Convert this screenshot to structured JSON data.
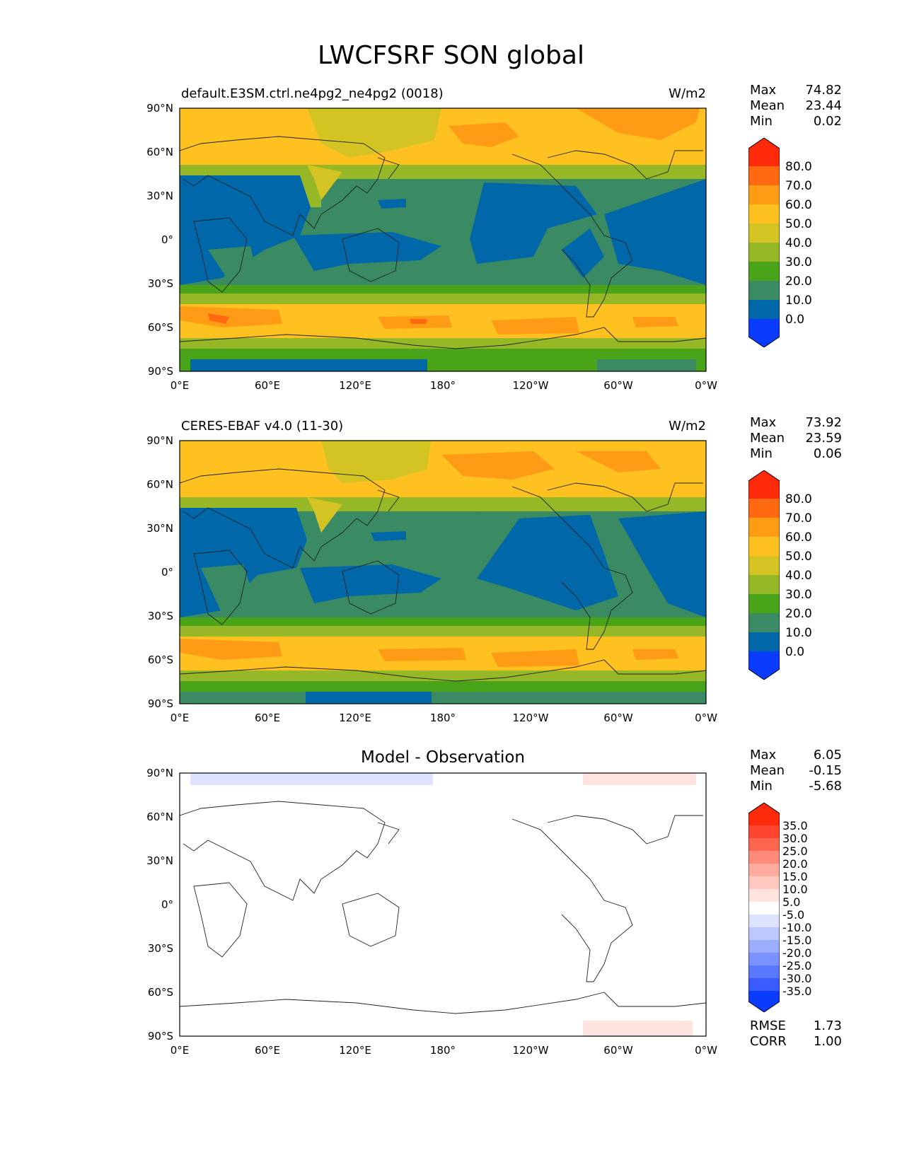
{
  "figure": {
    "title": "LWCFSRF SON global"
  },
  "axes": {
    "lat_labels": [
      "90°N",
      "60°N",
      "30°N",
      "0°",
      "30°S",
      "60°S",
      "90°S"
    ],
    "lon_labels": [
      "0°E",
      "60°E",
      "120°E",
      "180°",
      "120°W",
      "60°W",
      "0°W"
    ]
  },
  "panels": [
    {
      "id": "test",
      "title": "default.E3SM.ctrl.ne4pg2_ne4pg2 (0018)",
      "units": "W/m2",
      "stats": [
        {
          "label": "Max",
          "value": "74.82"
        },
        {
          "label": "Mean",
          "value": "23.44"
        },
        {
          "label": "Min",
          "value": "0.02"
        }
      ],
      "colorbar": {
        "labels": [
          "80.0",
          "70.0",
          "60.0",
          "50.0",
          "40.0",
          "30.0",
          "20.0",
          "10.0",
          "0.0"
        ],
        "colors": [
          "#ff2a0a",
          "#ff6a10",
          "#ff9b14",
          "#ffc11f",
          "#d4c423",
          "#96b826",
          "#4aa41a",
          "#3a8a63",
          "#0067a8",
          "#0a3cff"
        ]
      }
    },
    {
      "id": "reference",
      "title": "CERES-EBAF v4.0 (11-30)",
      "units": "W/m2",
      "stats": [
        {
          "label": "Max",
          "value": "73.92"
        },
        {
          "label": "Mean",
          "value": "23.59"
        },
        {
          "label": "Min",
          "value": "0.06"
        }
      ],
      "colorbar": {
        "labels": [
          "80.0",
          "70.0",
          "60.0",
          "50.0",
          "40.0",
          "30.0",
          "20.0",
          "10.0",
          "0.0"
        ],
        "colors": [
          "#ff2a0a",
          "#ff6a10",
          "#ff9b14",
          "#ffc11f",
          "#d4c423",
          "#96b826",
          "#4aa41a",
          "#3a8a63",
          "#0067a8",
          "#0a3cff"
        ]
      }
    },
    {
      "id": "diff",
      "title": "Model - Observation",
      "units": "",
      "stats": [
        {
          "label": "Max",
          "value": "6.05"
        },
        {
          "label": "Mean",
          "value": "-0.15"
        },
        {
          "label": "Min",
          "value": "-5.68"
        }
      ],
      "metrics": [
        {
          "label": "RMSE",
          "value": "1.73"
        },
        {
          "label": "CORR",
          "value": "1.00"
        }
      ],
      "colorbar": {
        "labels": [
          "35.0",
          "30.0",
          "25.0",
          "20.0",
          "15.0",
          "10.0",
          "5.0",
          "-5.0",
          "-10.0",
          "-15.0",
          "-20.0",
          "-25.0",
          "-30.0",
          "-35.0"
        ],
        "colors": [
          "#ff2a0a",
          "#ff4530",
          "#ff6650",
          "#ff8a78",
          "#ffab9e",
          "#ffc8bf",
          "#ffe3de",
          "#ffffff",
          "#dde3ff",
          "#bcc8ff",
          "#9aadff",
          "#7a92ff",
          "#5a77ff",
          "#3a5bff",
          "#0a3cff"
        ]
      }
    }
  ]
}
